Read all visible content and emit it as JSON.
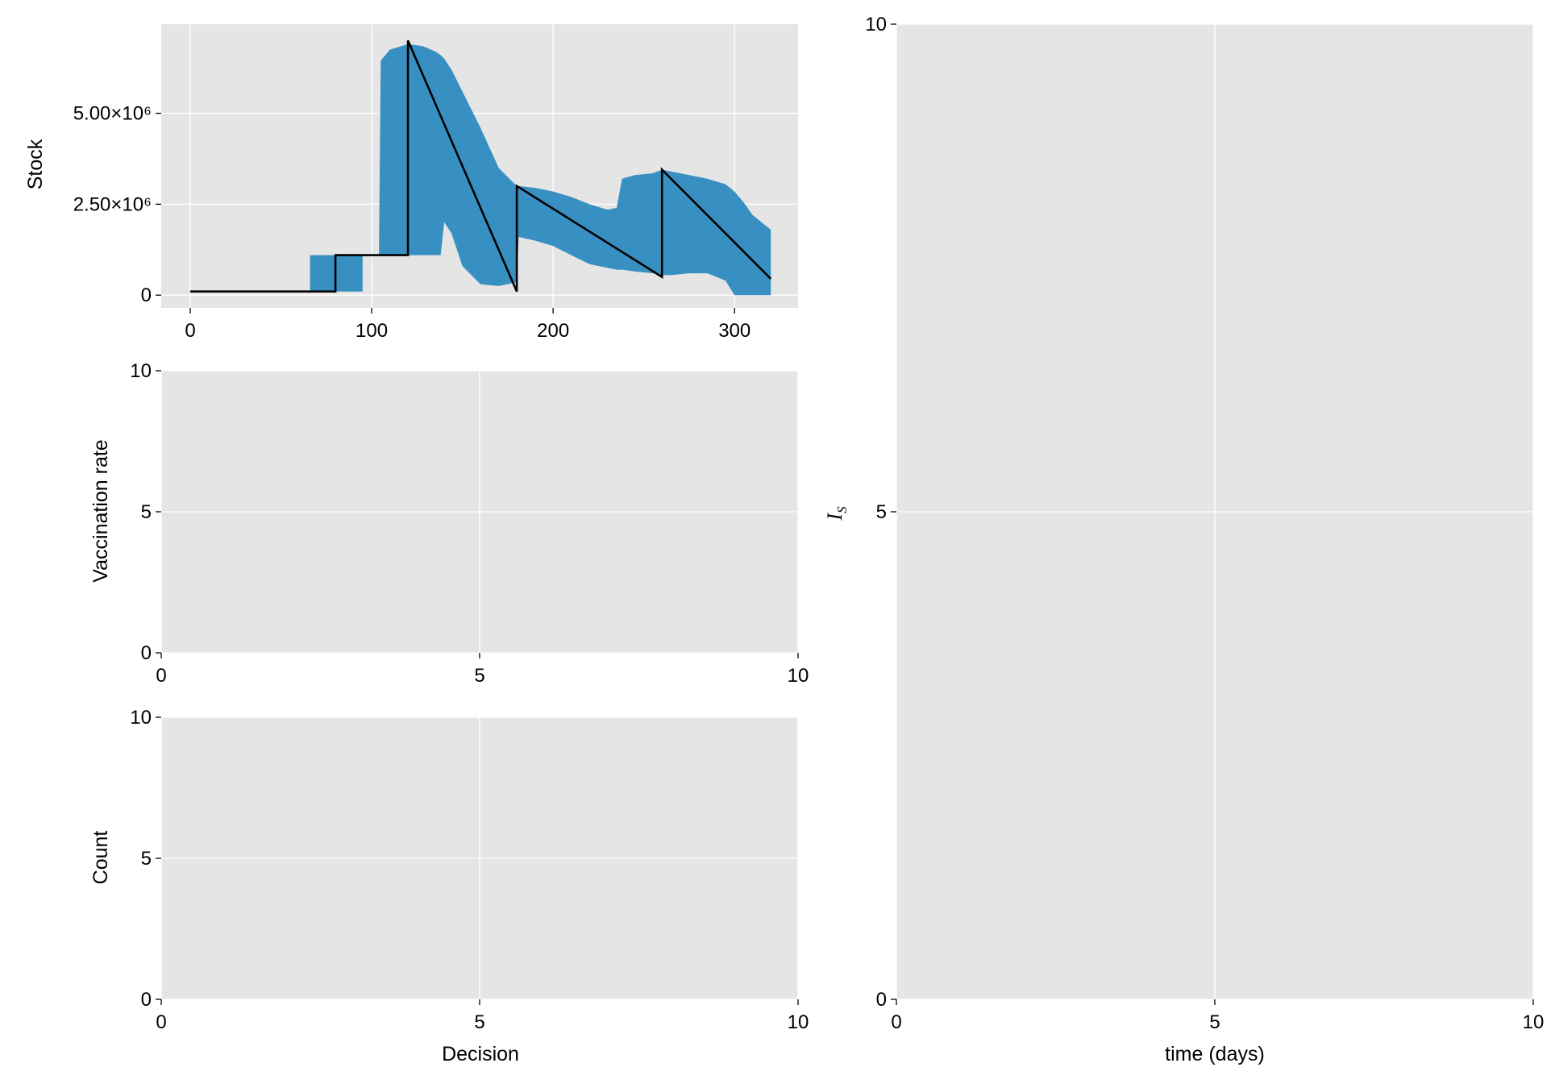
{
  "colors": {
    "panel_bg": "#e5e5e5",
    "grid": "#ffffff",
    "band": "#2e8bc0",
    "line": "#000000"
  },
  "chart_data": [
    {
      "id": "stock",
      "type": "area",
      "xlabel": "",
      "ylabel": "Stock",
      "xlim": [
        -16,
        335
      ],
      "ylim": [
        -350000,
        7450000
      ],
      "xticks": [
        0,
        100,
        200,
        300
      ],
      "xtick_labels": [
        "0",
        "100",
        "200",
        "300"
      ],
      "yticks": [
        0,
        2500000,
        5000000
      ],
      "ytick_labels": [
        "0",
        "2.50×10⁶",
        "5.00×10⁶"
      ],
      "grid": true,
      "band": {
        "x": [
          66,
          66,
          80,
          80,
          95,
          95,
          104,
          105,
          110,
          120,
          128,
          135,
          138,
          140,
          144,
          150,
          160,
          170,
          180,
          181,
          190,
          200,
          210,
          220,
          230,
          235,
          238,
          245,
          255,
          260,
          265,
          275,
          285,
          295,
          300,
          305,
          310,
          320
        ],
        "upper": [
          1100000,
          1100000,
          1100000,
          1100000,
          1100000,
          1100000,
          1100000,
          6450000,
          6750000,
          6900000,
          6850000,
          6700000,
          6600000,
          6500000,
          6200000,
          5600000,
          4600000,
          3500000,
          3000000,
          3000000,
          2950000,
          2850000,
          2700000,
          2500000,
          2350000,
          2400000,
          3200000,
          3300000,
          3350000,
          3450000,
          3400000,
          3300000,
          3200000,
          3050000,
          2850000,
          2550000,
          2200000,
          1800000
        ],
        "lower": [
          1100000,
          100000,
          100000,
          100000,
          100000,
          1100000,
          1100000,
          1100000,
          1100000,
          1100000,
          1100000,
          1100000,
          1100000,
          2000000,
          1700000,
          800000,
          300000,
          250000,
          350000,
          1600000,
          1500000,
          1350000,
          1100000,
          850000,
          750000,
          700000,
          700000,
          650000,
          600000,
          550000,
          550000,
          600000,
          600000,
          400000,
          0,
          0,
          0,
          0
        ]
      },
      "series": [
        {
          "type": "line",
          "x": [
            0,
            80,
            80,
            120,
            120,
            180,
            180,
            260,
            260,
            320
          ],
          "y": [
            100000,
            100000,
            1100000,
            1100000,
            7000000,
            100000,
            3000000,
            500000,
            3450000,
            450000
          ]
        }
      ]
    },
    {
      "id": "vaccination",
      "type": "line",
      "xlabel": "",
      "ylabel": "Vaccination rate",
      "xlim": [
        0,
        10
      ],
      "ylim": [
        0,
        10
      ],
      "xticks": [
        0,
        5,
        10
      ],
      "xtick_labels": [
        "0",
        "5",
        "10"
      ],
      "yticks": [
        0,
        5,
        10
      ],
      "ytick_labels": [
        "0",
        "5",
        "10"
      ],
      "grid": true,
      "series": []
    },
    {
      "id": "count",
      "type": "bar",
      "xlabel": "Decision",
      "ylabel": "Count",
      "xlim": [
        0,
        10
      ],
      "ylim": [
        0,
        10
      ],
      "xticks": [
        0,
        5,
        10
      ],
      "xtick_labels": [
        "0",
        "5",
        "10"
      ],
      "yticks": [
        0,
        5,
        10
      ],
      "ytick_labels": [
        "0",
        "5",
        "10"
      ],
      "grid": true,
      "series": []
    },
    {
      "id": "infected",
      "type": "line",
      "xlabel": "time (days)",
      "ylabel": "I",
      "ylabel_sub": "S",
      "xlim": [
        0,
        10
      ],
      "ylim": [
        0,
        10
      ],
      "xticks": [
        0,
        5,
        10
      ],
      "xtick_labels": [
        "0",
        "5",
        "10"
      ],
      "yticks": [
        0,
        5,
        10
      ],
      "ytick_labels": [
        "0",
        "5",
        "10"
      ],
      "grid": true,
      "series": []
    }
  ]
}
